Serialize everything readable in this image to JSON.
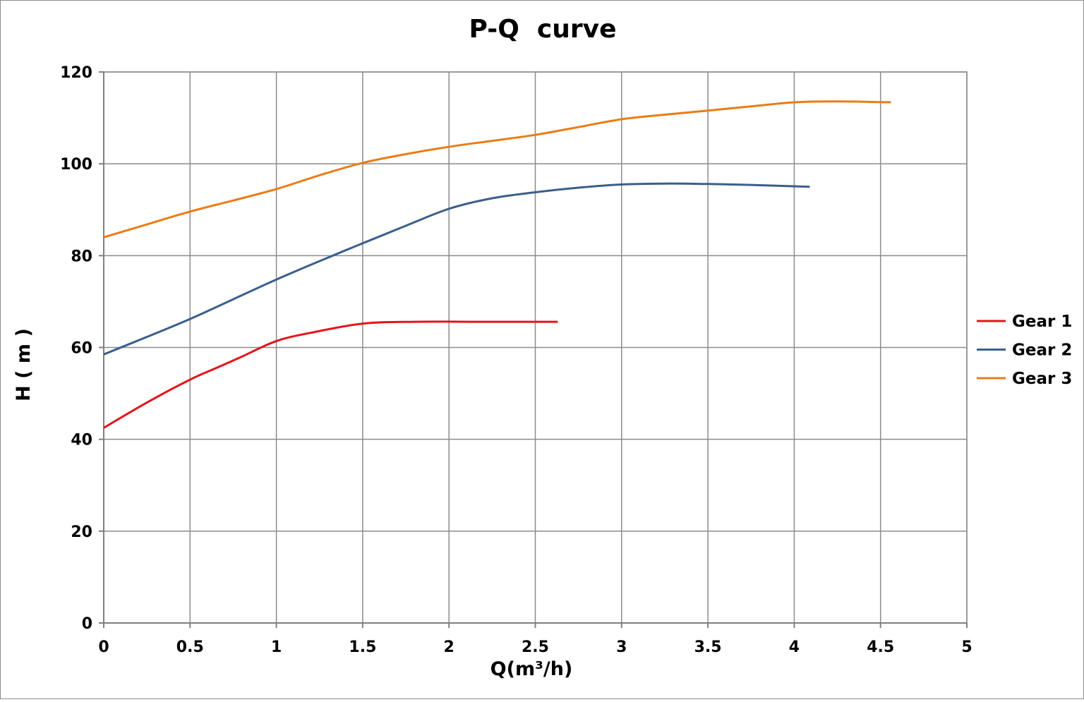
{
  "chart_data": {
    "type": "line",
    "title": "P-Q  curve",
    "xlabel": "Q(m³/h)",
    "ylabel": "H ( m )",
    "xlim": [
      0,
      5
    ],
    "ylim": [
      0,
      120
    ],
    "xticks": [
      "0",
      "0.5",
      "1",
      "1.5",
      "2",
      "2.5",
      "3",
      "3.5",
      "4",
      "4.5",
      "5"
    ],
    "yticks": [
      "0",
      "20",
      "40",
      "60",
      "80",
      "100",
      "120"
    ],
    "grid": true,
    "legend": "right",
    "series": [
      {
        "name": "Gear 1",
        "color": "#e3141b",
        "points": [
          [
            0,
            42.5
          ],
          [
            0.25,
            48
          ],
          [
            0.5,
            53
          ],
          [
            0.65,
            55.5
          ],
          [
            0.8,
            58
          ],
          [
            1.0,
            61.4
          ],
          [
            1.2,
            63.2
          ],
          [
            1.5,
            65.2
          ],
          [
            1.8,
            65.6
          ],
          [
            2.2,
            65.6
          ],
          [
            2.63,
            65.6
          ]
        ]
      },
      {
        "name": "Gear 2",
        "color": "#3b5f8c",
        "points": [
          [
            0,
            58.5
          ],
          [
            0.25,
            62.3
          ],
          [
            0.5,
            66.2
          ],
          [
            0.75,
            70.5
          ],
          [
            1.0,
            74.8
          ],
          [
            1.25,
            78.8
          ],
          [
            1.5,
            82.7
          ],
          [
            1.75,
            86.5
          ],
          [
            2.0,
            90.2
          ],
          [
            2.25,
            92.5
          ],
          [
            2.5,
            93.8
          ],
          [
            2.75,
            94.8
          ],
          [
            3.0,
            95.5
          ],
          [
            3.25,
            95.7
          ],
          [
            3.5,
            95.6
          ],
          [
            3.75,
            95.4
          ],
          [
            4.09,
            95.0
          ]
        ]
      },
      {
        "name": "Gear 3",
        "color": "#e97d16",
        "points": [
          [
            0,
            84.0
          ],
          [
            0.25,
            86.8
          ],
          [
            0.5,
            89.6
          ],
          [
            0.75,
            92.0
          ],
          [
            1.0,
            94.5
          ],
          [
            1.25,
            97.5
          ],
          [
            1.5,
            100.2
          ],
          [
            1.75,
            102.1
          ],
          [
            2.0,
            103.7
          ],
          [
            2.25,
            105.0
          ],
          [
            2.5,
            106.3
          ],
          [
            2.75,
            108.0
          ],
          [
            3.0,
            109.7
          ],
          [
            3.25,
            110.7
          ],
          [
            3.5,
            111.6
          ],
          [
            3.75,
            112.5
          ],
          [
            4.0,
            113.4
          ],
          [
            4.25,
            113.6
          ],
          [
            4.56,
            113.4
          ]
        ]
      }
    ]
  }
}
